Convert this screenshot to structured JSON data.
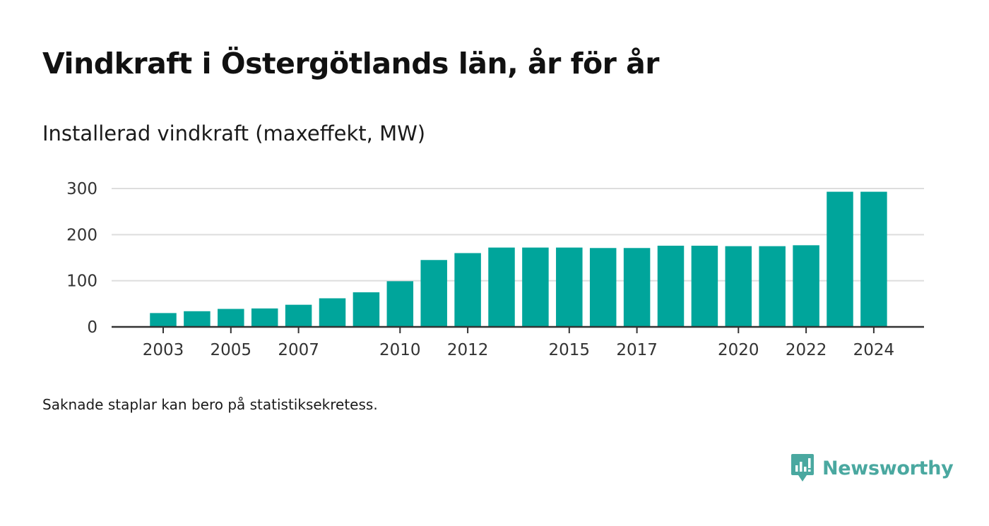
{
  "title": "Vindkraft i Östergötlands län, år för år",
  "subtitle": "Installerad vindkraft (maxeffekt, MW)",
  "footnote": "Saknade staplar kan bero på statistiksekretess.",
  "brand": {
    "name": "Newsworthy",
    "logo_icon": "bar-chart-speech-bubble-icon",
    "color": "#4aa8a0"
  },
  "colors": {
    "bar": "#00a59b",
    "grid": "#dddddd",
    "axis": "#333333",
    "tick_text": "#333333"
  },
  "chart_data": {
    "type": "bar",
    "categories": [
      "2003",
      "2004",
      "2005",
      "2006",
      "2007",
      "2008",
      "2009",
      "2010",
      "2011",
      "2012",
      "2013",
      "2014",
      "2015",
      "2016",
      "2017",
      "2018",
      "2019",
      "2020",
      "2021",
      "2022",
      "2023",
      "2024"
    ],
    "values": [
      30,
      34,
      39,
      40,
      48,
      62,
      75,
      99,
      145,
      160,
      172,
      172,
      172,
      171,
      171,
      176,
      176,
      175,
      175,
      177,
      293,
      293
    ],
    "x_tick_labels": [
      "2003",
      "2005",
      "2007",
      "2010",
      "2012",
      "2015",
      "2017",
      "2020",
      "2022",
      "2024"
    ],
    "y_ticks": [
      0,
      100,
      200,
      300
    ],
    "ylim": [
      0,
      300
    ],
    "xlabel": "",
    "ylabel": "",
    "grid": true,
    "legend": "none"
  }
}
